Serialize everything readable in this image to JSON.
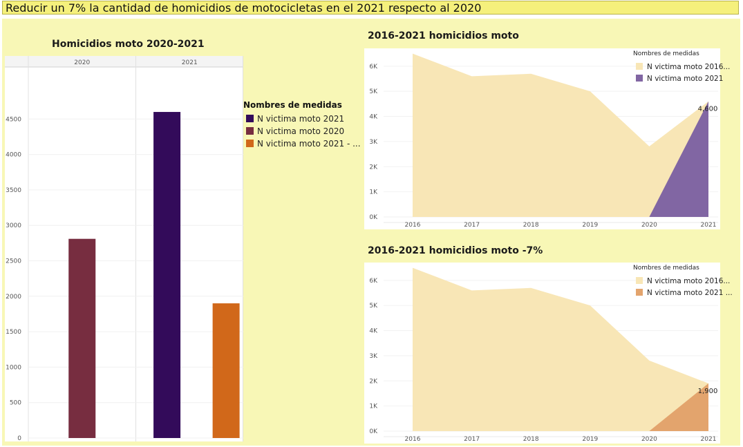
{
  "header": {
    "title": "Reducir un 7% la cantidad de homicidios de motocicletas en el 2021 respecto al 2020"
  },
  "chart_data": [
    {
      "type": "bar",
      "title": "Homicidios moto 2020-2021",
      "columns": [
        "2020",
        "2021"
      ],
      "yticks": [
        "0",
        "500",
        "1000",
        "1500",
        "2000",
        "2500",
        "3000",
        "3500",
        "4000",
        "4500"
      ],
      "ylim": [
        0,
        5000
      ],
      "legend_title": "Nombres de medidas",
      "series": [
        {
          "name": "N victima moto 2021",
          "color": "#330b5a"
        },
        {
          "name": "N victima moto 2020",
          "color": "#772d40"
        },
        {
          "name": "N victima moto 2021 - ...",
          "color": "#d1681a"
        }
      ],
      "bars": [
        {
          "column": "2020",
          "series": "N victima moto 2020",
          "value": 2810,
          "color": "#772d40"
        },
        {
          "column": "2021",
          "series": "N victima moto 2021",
          "value": 4600,
          "color": "#330b5a"
        },
        {
          "column": "2021",
          "series": "N victima moto 2021 - ...",
          "value": 1900,
          "color": "#d1681a"
        }
      ]
    },
    {
      "type": "area",
      "title": "2016-2021 homicidios moto",
      "x": [
        "2016",
        "2017",
        "2018",
        "2019",
        "2020",
        "2021"
      ],
      "yticks": [
        "0K",
        "1K",
        "2K",
        "3K",
        "4K",
        "5K",
        "6K"
      ],
      "ylim": [
        0,
        6600
      ],
      "legend_title": "Nombres de medidas",
      "series": [
        {
          "name": "N victima moto 2016...",
          "color": "#f8e6b6",
          "values": [
            6500,
            5600,
            5700,
            5000,
            2810,
            4600
          ]
        },
        {
          "name": "N victima moto 2021",
          "color": "#8166a3",
          "values": [
            null,
            null,
            null,
            null,
            0,
            4600
          ]
        }
      ],
      "data_label": "4,600"
    },
    {
      "type": "area",
      "title": "2016-2021 homicidios moto -7%",
      "x": [
        "2016",
        "2017",
        "2018",
        "2019",
        "2020",
        "2021"
      ],
      "yticks": [
        "0K",
        "1K",
        "2K",
        "3K",
        "4K",
        "5K",
        "6K"
      ],
      "ylim": [
        0,
        6600
      ],
      "legend_title": "Nombres de medidas",
      "series": [
        {
          "name": "N victima moto 2016...",
          "color": "#f8e6b6",
          "values": [
            6500,
            5600,
            5700,
            5000,
            2810,
            1900
          ]
        },
        {
          "name": "N victima moto 2021 ...",
          "color": "#e3a46d",
          "values": [
            null,
            null,
            null,
            null,
            0,
            1900
          ]
        }
      ],
      "data_label": "1,900"
    }
  ]
}
